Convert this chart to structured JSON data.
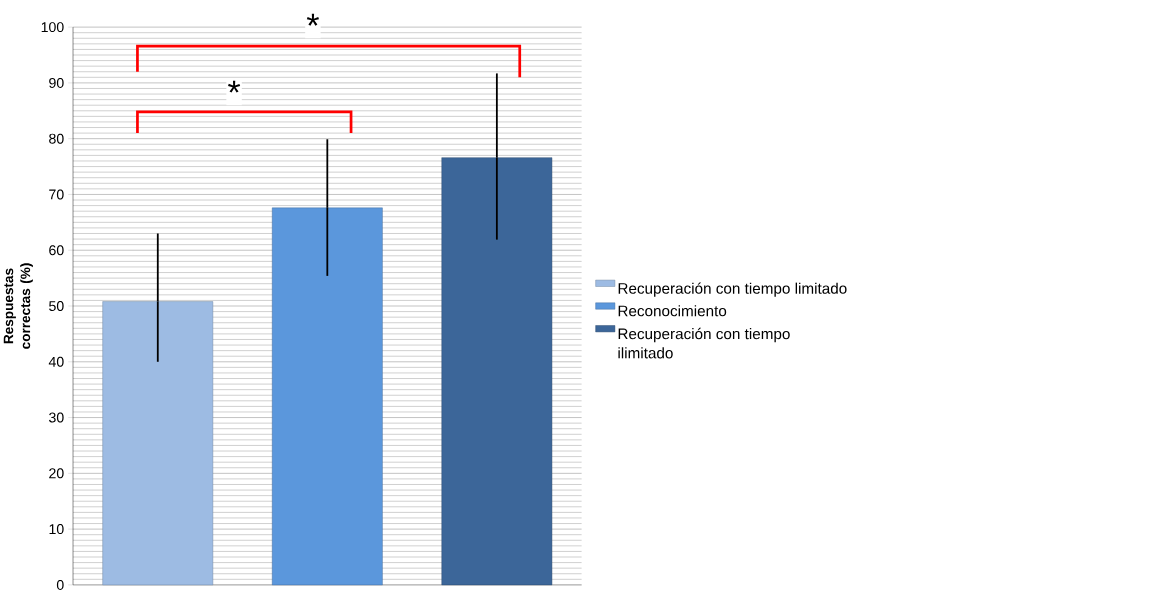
{
  "chart_data": {
    "type": "bar",
    "ylabel": "Respuestas correctas (%)",
    "categories": [
      null
    ],
    "series": [
      {
        "name": "Recuperación con tiempo limitado",
        "color": "#9dbbe3",
        "values": [
          50.8
        ],
        "errors": [
          [
            40,
            63
          ]
        ]
      },
      {
        "name": "Reconocimiento",
        "color": "#5b97dc",
        "values": [
          67.6
        ],
        "errors": [
          [
            55.4,
            79.9
          ]
        ]
      },
      {
        "name": "Recuperación con tiempo ilimitado",
        "color": "#3c6699",
        "values": [
          76.6
        ],
        "errors": [
          [
            61.9,
            91.7
          ]
        ]
      }
    ],
    "ylim": [
      0,
      100
    ],
    "yticks": [
      0,
      10,
      20,
      30,
      40,
      50,
      60,
      70,
      80,
      90,
      100
    ],
    "grid": "y",
    "legend": "right",
    "annotations": [
      "*",
      "*"
    ]
  }
}
